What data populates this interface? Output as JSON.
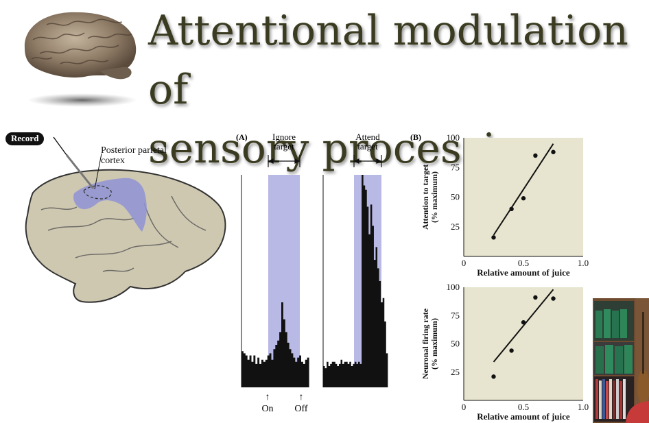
{
  "slide": {
    "title_line1": "Attentional modulation of",
    "title_line2": "sensory processing"
  },
  "anatomy": {
    "record_label": "Record",
    "region_label_line1": "Posterior parietal",
    "region_label_line2": "cortex"
  },
  "panel_a": {
    "tag": "(A)",
    "conditions": [
      {
        "line1": "Ignore",
        "line2": "target"
      },
      {
        "line1": "Attend",
        "line2": "target"
      }
    ],
    "events": [
      "On",
      "Off"
    ]
  },
  "panel_b": {
    "tag": "(B)"
  },
  "colors": {
    "title": "#3a3b20",
    "plot_bg": "#e7e5cf",
    "highlight": "#b9b9e6",
    "cortex": "#ccc6ae",
    "parietal": "#8f93d6"
  },
  "chart_data": [
    {
      "type": "scatter",
      "title": "",
      "xlabel": "Relative amount of juice",
      "ylabel": "Attention to target",
      "ylabel_sub": "(% maximum)",
      "xlim": [
        0,
        1.0
      ],
      "ylim": [
        0,
        100
      ],
      "x_ticks": [
        "0",
        "0.5",
        "1.0"
      ],
      "y_ticks": [
        "25",
        "50",
        "75",
        "100"
      ],
      "grid": false,
      "points": [
        {
          "x": 0.25,
          "y": 16
        },
        {
          "x": 0.4,
          "y": 40
        },
        {
          "x": 0.5,
          "y": 49
        },
        {
          "x": 0.6,
          "y": 85
        },
        {
          "x": 0.75,
          "y": 88
        }
      ],
      "fit_line": [
        {
          "x": 0.25,
          "y": 18
        },
        {
          "x": 0.75,
          "y": 95
        }
      ]
    },
    {
      "type": "scatter",
      "title": "",
      "xlabel": "Relative amount of juice",
      "ylabel": "Neuronal firing rate",
      "ylabel_sub": "(% maximum)",
      "xlim": [
        0,
        1.0
      ],
      "ylim": [
        0,
        100
      ],
      "x_ticks": [
        "0",
        "0.5",
        "1.0"
      ],
      "y_ticks": [
        "25",
        "50",
        "75",
        "100"
      ],
      "grid": false,
      "points": [
        {
          "x": 0.25,
          "y": 21
        },
        {
          "x": 0.4,
          "y": 44
        },
        {
          "x": 0.5,
          "y": 69
        },
        {
          "x": 0.6,
          "y": 91
        },
        {
          "x": 0.75,
          "y": 90
        }
      ],
      "fit_line": [
        {
          "x": 0.25,
          "y": 34
        },
        {
          "x": 0.75,
          "y": 98
        }
      ]
    },
    {
      "type": "bar",
      "title": "",
      "series": [
        {
          "name": "",
          "values": [
            17,
            16,
            15,
            13,
            15,
            12,
            15,
            11,
            14,
            11,
            13,
            12,
            13,
            15,
            16,
            13,
            18,
            20,
            22,
            26,
            40,
            32,
            26,
            21,
            18,
            16,
            14,
            12,
            14,
            15,
            12,
            11,
            13,
            14
          ]
        },
        {
          "name": "",
          "values": [
            10,
            9,
            12,
            10,
            11,
            12,
            12,
            11,
            10,
            11,
            13,
            11,
            12,
            12,
            11,
            12,
            10,
            11,
            12,
            11,
            12,
            11,
            100,
            95,
            93,
            85,
            72,
            86,
            76,
            60,
            66,
            56,
            50,
            40,
            42,
            31,
            16
          ]
        }
      ],
      "highlight_window": [
        "On",
        "Off"
      ]
    }
  ]
}
